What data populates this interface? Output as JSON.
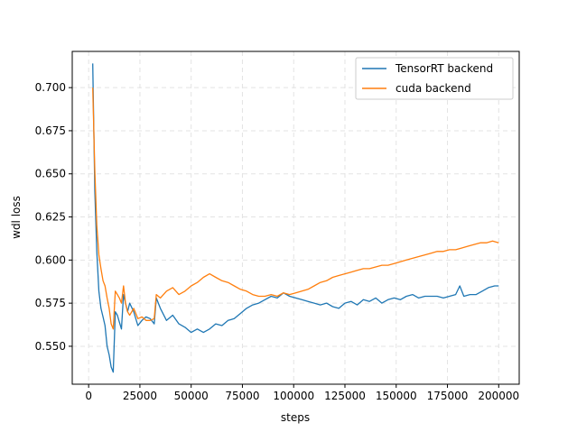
{
  "chart_data": {
    "type": "line",
    "title": "",
    "xlabel": "steps",
    "ylabel": "wdl loss",
    "xlim": [
      -8000,
      210000
    ],
    "ylim": [
      0.528,
      0.721
    ],
    "xticks": [
      0,
      25000,
      50000,
      75000,
      100000,
      125000,
      150000,
      175000,
      200000
    ],
    "yticks": [
      0.55,
      0.575,
      0.6,
      0.625,
      0.65,
      0.675,
      0.7
    ],
    "xtick_labels": [
      "0",
      "25000",
      "50000",
      "75000",
      "100000",
      "125000",
      "150000",
      "175000",
      "200000"
    ],
    "ytick_labels": [
      "0.550",
      "0.575",
      "0.600",
      "0.625",
      "0.650",
      "0.675",
      "0.700"
    ],
    "grid": true,
    "legend_position": "top-right",
    "series": [
      {
        "name": "TensorRT backend",
        "color": "#1f77b4",
        "x": [
          2000,
          3000,
          4000,
          5000,
          6000,
          7000,
          8000,
          9000,
          10000,
          11000,
          12000,
          13000,
          14000,
          15000,
          16000,
          17000,
          18000,
          19000,
          20000,
          22000,
          24000,
          26000,
          28000,
          30000,
          32000,
          33000,
          35000,
          38000,
          41000,
          44000,
          47000,
          50000,
          53000,
          56000,
          59000,
          62000,
          65000,
          68000,
          71000,
          74000,
          77000,
          80000,
          83000,
          86000,
          89000,
          92000,
          95000,
          98000,
          101000,
          104000,
          107000,
          110000,
          113000,
          116000,
          119000,
          122000,
          125000,
          128000,
          131000,
          134000,
          137000,
          140000,
          143000,
          146000,
          149000,
          152000,
          155000,
          158000,
          161000,
          164000,
          167000,
          170000,
          173000,
          176000,
          179000,
          181000,
          183000,
          186000,
          189000,
          192000,
          195000,
          198000,
          200000
        ],
        "y": [
          0.714,
          0.64,
          0.605,
          0.582,
          0.572,
          0.567,
          0.562,
          0.55,
          0.545,
          0.538,
          0.535,
          0.57,
          0.568,
          0.564,
          0.56,
          0.58,
          0.575,
          0.57,
          0.575,
          0.57,
          0.562,
          0.565,
          0.567,
          0.566,
          0.563,
          0.578,
          0.572,
          0.565,
          0.568,
          0.563,
          0.561,
          0.558,
          0.56,
          0.558,
          0.56,
          0.563,
          0.562,
          0.565,
          0.566,
          0.569,
          0.572,
          0.574,
          0.575,
          0.577,
          0.579,
          0.578,
          0.581,
          0.579,
          0.578,
          0.577,
          0.576,
          0.575,
          0.574,
          0.575,
          0.573,
          0.572,
          0.575,
          0.576,
          0.574,
          0.577,
          0.576,
          0.578,
          0.575,
          0.577,
          0.578,
          0.577,
          0.579,
          0.58,
          0.578,
          0.579,
          0.579,
          0.579,
          0.578,
          0.579,
          0.58,
          0.585,
          0.579,
          0.58,
          0.58,
          0.582,
          0.584,
          0.585,
          0.585
        ]
      },
      {
        "name": "cuda backend",
        "color": "#ff7f0e",
        "x": [
          2000,
          3000,
          4000,
          5000,
          6000,
          7000,
          8000,
          9000,
          10000,
          11000,
          12000,
          13000,
          14000,
          15000,
          16000,
          17000,
          18000,
          19000,
          20000,
          22000,
          24000,
          26000,
          28000,
          30000,
          32000,
          33000,
          35000,
          38000,
          41000,
          44000,
          47000,
          50000,
          53000,
          56000,
          59000,
          62000,
          65000,
          68000,
          71000,
          74000,
          77000,
          80000,
          83000,
          86000,
          89000,
          92000,
          95000,
          98000,
          101000,
          104000,
          107000,
          110000,
          113000,
          116000,
          119000,
          122000,
          125000,
          128000,
          131000,
          134000,
          137000,
          140000,
          143000,
          146000,
          149000,
          152000,
          155000,
          158000,
          161000,
          164000,
          167000,
          170000,
          173000,
          176000,
          179000,
          182000,
          185000,
          188000,
          191000,
          194000,
          197000,
          200000
        ],
        "y": [
          0.7,
          0.652,
          0.62,
          0.603,
          0.595,
          0.588,
          0.585,
          0.578,
          0.572,
          0.563,
          0.56,
          0.582,
          0.58,
          0.578,
          0.575,
          0.585,
          0.575,
          0.57,
          0.568,
          0.572,
          0.566,
          0.567,
          0.565,
          0.565,
          0.566,
          0.58,
          0.578,
          0.582,
          0.584,
          0.58,
          0.582,
          0.585,
          0.587,
          0.59,
          0.592,
          0.59,
          0.588,
          0.587,
          0.585,
          0.583,
          0.582,
          0.58,
          0.579,
          0.579,
          0.58,
          0.579,
          0.581,
          0.58,
          0.581,
          0.582,
          0.583,
          0.585,
          0.587,
          0.588,
          0.59,
          0.591,
          0.592,
          0.593,
          0.594,
          0.595,
          0.595,
          0.596,
          0.597,
          0.597,
          0.598,
          0.599,
          0.6,
          0.601,
          0.602,
          0.603,
          0.604,
          0.605,
          0.605,
          0.606,
          0.606,
          0.607,
          0.608,
          0.609,
          0.61,
          0.61,
          0.611,
          0.61
        ]
      }
    ]
  }
}
